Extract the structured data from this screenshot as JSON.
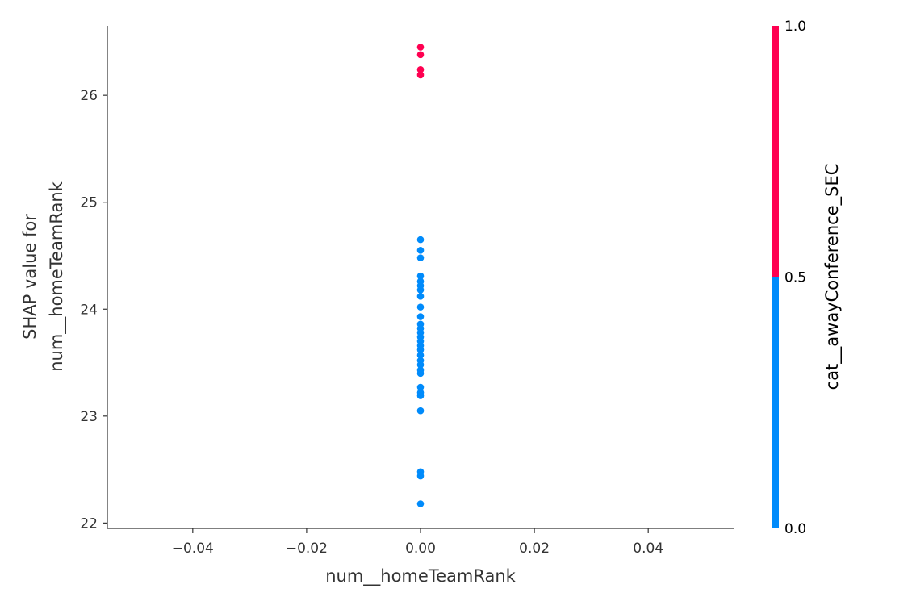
{
  "chart_data": {
    "type": "scatter",
    "title": "",
    "xlabel": "num__homeTeamRank",
    "ylabel_lines": [
      "SHAP value for",
      "num__homeTeamRank"
    ],
    "xlim": [
      -0.055,
      0.055
    ],
    "ylim": [
      21.95,
      26.65
    ],
    "x_ticks": [
      -0.04,
      -0.02,
      0.0,
      0.02,
      0.04
    ],
    "x_tick_labels": [
      "−0.04",
      "−0.02",
      "0.00",
      "0.02",
      "0.04"
    ],
    "y_ticks": [
      22,
      23,
      24,
      25,
      26
    ],
    "y_tick_labels": [
      "22",
      "23",
      "24",
      "25",
      "26"
    ],
    "grid": false,
    "colorbar": {
      "label": "cat__awayConference_SEC",
      "range": [
        0.0,
        1.0
      ],
      "ticks": [
        0.0,
        0.5,
        1.0
      ],
      "tick_labels": [
        "0.0",
        "0.5",
        "1.0"
      ],
      "low_color": "#008bfb",
      "high_color": "#ff0051"
    },
    "series": [
      {
        "color": "#ff0051",
        "points": [
          {
            "x": 0.0,
            "y": 26.45
          },
          {
            "x": 0.0,
            "y": 26.38
          },
          {
            "x": 0.0,
            "y": 26.24
          },
          {
            "x": 0.0,
            "y": 26.19
          }
        ]
      },
      {
        "color": "#008bfb",
        "points": [
          {
            "x": 0.0,
            "y": 24.65
          },
          {
            "x": 0.0,
            "y": 24.55
          },
          {
            "x": 0.0,
            "y": 24.48
          },
          {
            "x": 0.0,
            "y": 24.31
          },
          {
            "x": 0.0,
            "y": 24.26
          },
          {
            "x": 0.0,
            "y": 24.22
          },
          {
            "x": 0.0,
            "y": 24.18
          },
          {
            "x": 0.0,
            "y": 24.12
          },
          {
            "x": 0.0,
            "y": 24.02
          },
          {
            "x": 0.0,
            "y": 23.93
          },
          {
            "x": 0.0,
            "y": 23.86
          },
          {
            "x": 0.0,
            "y": 23.82
          },
          {
            "x": 0.0,
            "y": 23.78
          },
          {
            "x": 0.0,
            "y": 23.74
          },
          {
            "x": 0.0,
            "y": 23.7
          },
          {
            "x": 0.0,
            "y": 23.66
          },
          {
            "x": 0.0,
            "y": 23.62
          },
          {
            "x": 0.0,
            "y": 23.57
          },
          {
            "x": 0.0,
            "y": 23.52
          },
          {
            "x": 0.0,
            "y": 23.48
          },
          {
            "x": 0.0,
            "y": 23.43
          },
          {
            "x": 0.0,
            "y": 23.4
          },
          {
            "x": 0.0,
            "y": 23.27
          },
          {
            "x": 0.0,
            "y": 23.22
          },
          {
            "x": 0.0,
            "y": 23.19
          },
          {
            "x": 0.0,
            "y": 23.05
          },
          {
            "x": 0.0,
            "y": 22.48
          },
          {
            "x": 0.0,
            "y": 22.44
          },
          {
            "x": 0.0,
            "y": 22.18
          }
        ]
      }
    ]
  }
}
